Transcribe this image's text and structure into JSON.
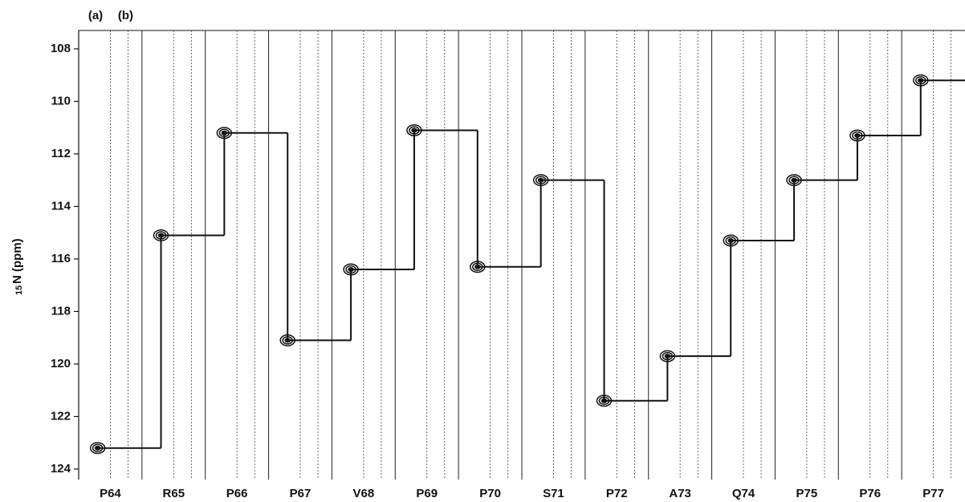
{
  "chart_data": {
    "type": "strip",
    "panel_labels": [
      "(a)",
      "(b)"
    ],
    "ylabel": {
      "isotope": "15",
      "text": "N (ppm)"
    },
    "ylim": [
      107.3,
      124.4
    ],
    "inverted": true,
    "yticks": [
      108,
      110,
      112,
      114,
      116,
      118,
      120,
      122,
      124
    ],
    "categories": [
      "P64",
      "R65",
      "P66",
      "P67",
      "V68",
      "P69",
      "P70",
      "S71",
      "P72",
      "A73",
      "Q74",
      "P75",
      "P76",
      "P77"
    ],
    "series": [
      {
        "color": "#111111",
        "values": [
          123.2,
          115.1,
          111.2,
          119.1,
          116.4,
          111.1,
          116.3,
          113.0,
          121.4,
          119.7,
          115.3,
          113.0,
          111.3,
          109.2
        ]
      }
    ]
  }
}
